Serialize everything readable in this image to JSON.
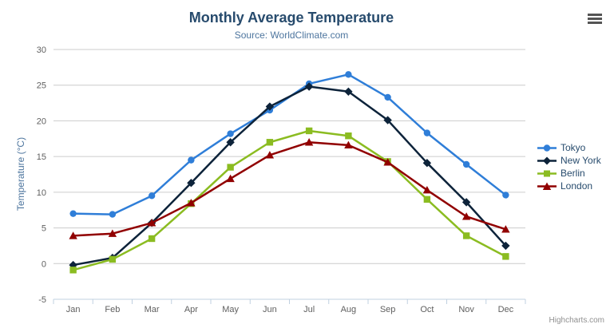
{
  "chart_data": {
    "type": "line",
    "title": "Monthly Average Temperature",
    "subtitle": "Source: WorldClimate.com",
    "categories": [
      "Jan",
      "Feb",
      "Mar",
      "Apr",
      "May",
      "Jun",
      "Jul",
      "Aug",
      "Sep",
      "Oct",
      "Nov",
      "Dec"
    ],
    "xlabel": "",
    "ylabel": "Temperature (°C)",
    "ylim": [
      -5,
      30
    ],
    "ytick_step": 5,
    "grid": true,
    "legend_position": "right",
    "series": [
      {
        "name": "Tokyo",
        "color": "#2f7ed8",
        "marker": "circle",
        "values": [
          7.0,
          6.9,
          9.5,
          14.5,
          18.2,
          21.5,
          25.2,
          26.5,
          23.3,
          18.3,
          13.9,
          9.6
        ]
      },
      {
        "name": "New York",
        "color": "#0d233a",
        "marker": "diamond",
        "values": [
          -0.2,
          0.8,
          5.7,
          11.3,
          17.0,
          22.0,
          24.8,
          24.1,
          20.1,
          14.1,
          8.6,
          2.5
        ]
      },
      {
        "name": "Berlin",
        "color": "#8bbc21",
        "marker": "square",
        "values": [
          -0.9,
          0.6,
          3.5,
          8.4,
          13.5,
          17.0,
          18.6,
          17.9,
          14.3,
          9.0,
          3.9,
          1.0
        ]
      },
      {
        "name": "London",
        "color": "#910000",
        "marker": "triangle",
        "values": [
          3.9,
          4.2,
          5.7,
          8.5,
          11.9,
          15.2,
          17.0,
          16.6,
          14.2,
          10.3,
          6.6,
          4.8
        ]
      }
    ]
  },
  "credit": {
    "label": "Highcharts.com"
  },
  "icons": {
    "context_menu": "hamburger-icon"
  },
  "theme": {
    "title_color": "#274b6d",
    "subtitle_color": "#4d759e",
    "axis_title_color": "#4d759e",
    "axis_label_color": "#606060",
    "grid_color": "#cccccc",
    "axis_line_color": "#c0d0e0",
    "legend_text_color": "#274b6d",
    "credit_color": "#909090",
    "background": "#ffffff"
  }
}
